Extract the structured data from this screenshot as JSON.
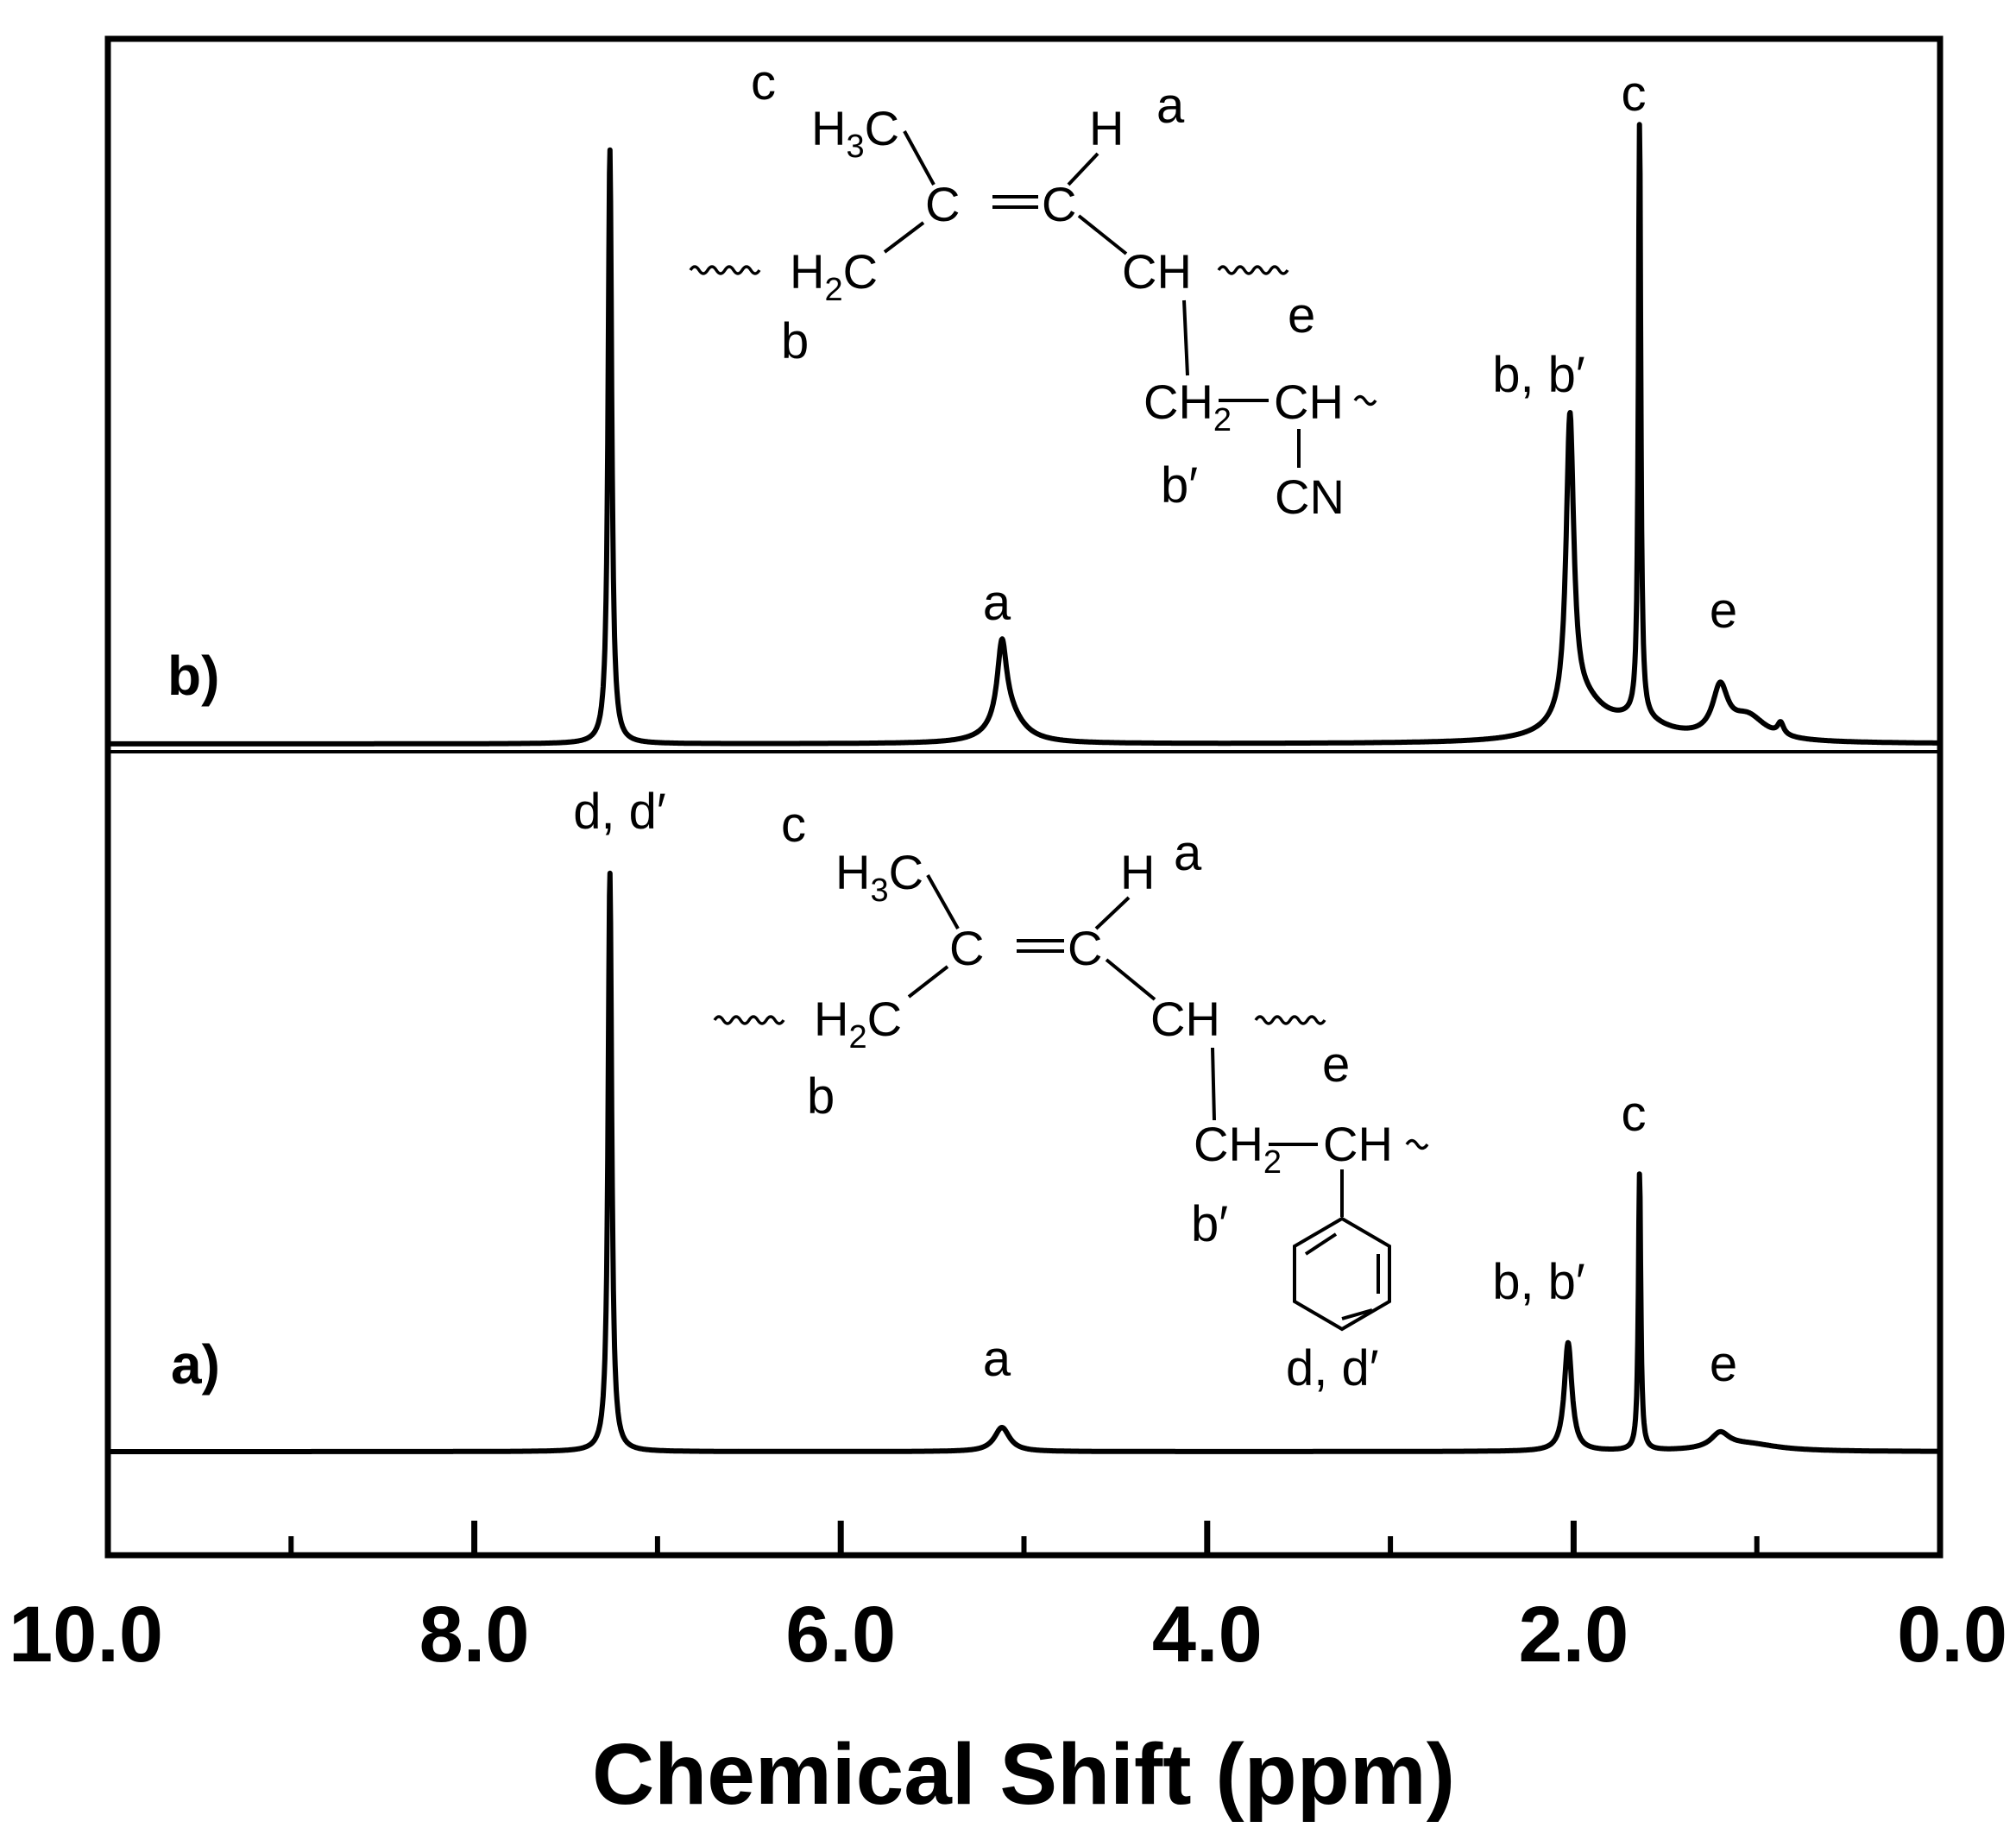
{
  "chart_data": {
    "type": "line",
    "xlabel": "Chemical Shift (ppm)",
    "xlim": [
      10.0,
      0.0
    ],
    "x_reversed": true,
    "x_ticks": [
      10.0,
      8.0,
      6.0,
      4.0,
      2.0,
      0.0
    ],
    "x_tick_labels": [
      "10.0",
      "8.0",
      "6.0",
      "4.0",
      "2.0",
      "0.0"
    ],
    "x_minor_ticks": [
      9.0,
      7.0,
      5.0,
      3.0,
      1.0
    ],
    "ylabel": "",
    "grid": false,
    "series": [
      {
        "panel_label": "b)",
        "peak_labels": [
          {
            "label": "a",
            "x": 5.12
          },
          {
            "label": "b, b′",
            "x": 2.02
          },
          {
            "label": "c",
            "x": 1.64
          },
          {
            "label": "e",
            "x": 1.17
          }
        ],
        "structure": {
          "group_labels": [
            "c",
            "a",
            "b",
            "e",
            "b′"
          ],
          "substituent": "CN"
        },
        "peaks": [
          {
            "x": 7.26,
            "h": 1.0,
            "w": 0.012
          },
          {
            "x": 5.12,
            "h": 0.13,
            "w": 0.03
          },
          {
            "x": 5.09,
            "h": 0.05,
            "w": 0.1
          },
          {
            "x": 2.02,
            "h": 0.5,
            "w": 0.025
          },
          {
            "x": 1.95,
            "h": 0.06,
            "w": 0.15
          },
          {
            "x": 1.64,
            "h": 1.0,
            "w": 0.008
          },
          {
            "x": 1.65,
            "h": 0.03,
            "w": 0.2
          },
          {
            "x": 1.2,
            "h": 0.08,
            "w": 0.05
          },
          {
            "x": 1.05,
            "h": 0.04,
            "w": 0.12
          },
          {
            "x": 0.87,
            "h": 0.02,
            "w": 0.02
          }
        ]
      },
      {
        "panel_label": "a)",
        "peak_labels": [
          {
            "label": "d, d′",
            "x": 7.26
          },
          {
            "label": "a",
            "x": 5.12
          },
          {
            "label": "b, b′",
            "x": 2.02
          },
          {
            "label": "c",
            "x": 1.64
          },
          {
            "label": "e",
            "x": 1.17
          }
        ],
        "structure": {
          "group_labels": [
            "c",
            "a",
            "b",
            "e",
            "b′",
            "d, d′"
          ],
          "substituent": "phenyl"
        },
        "peaks": [
          {
            "x": 7.26,
            "h": 0.96,
            "w": 0.012
          },
          {
            "x": 5.12,
            "h": 0.04,
            "w": 0.05
          },
          {
            "x": 2.03,
            "h": 0.18,
            "w": 0.025
          },
          {
            "x": 1.64,
            "h": 0.46,
            "w": 0.008
          },
          {
            "x": 1.2,
            "h": 0.025,
            "w": 0.06
          },
          {
            "x": 1.05,
            "h": 0.012,
            "w": 0.2
          }
        ]
      }
    ]
  },
  "structure_text": {
    "h3c_main": "H",
    "h3c_sub": "3",
    "h3c_end": "C",
    "c": "C",
    "h": "H",
    "h2c_main": "H",
    "h2c_sub": "2",
    "h2c_end": "C",
    "ch": "CH",
    "ch2_main": "CH",
    "ch2_sub": "2",
    "cn": "CN"
  },
  "style": {
    "line_color": "#000000",
    "background": "#ffffff"
  }
}
